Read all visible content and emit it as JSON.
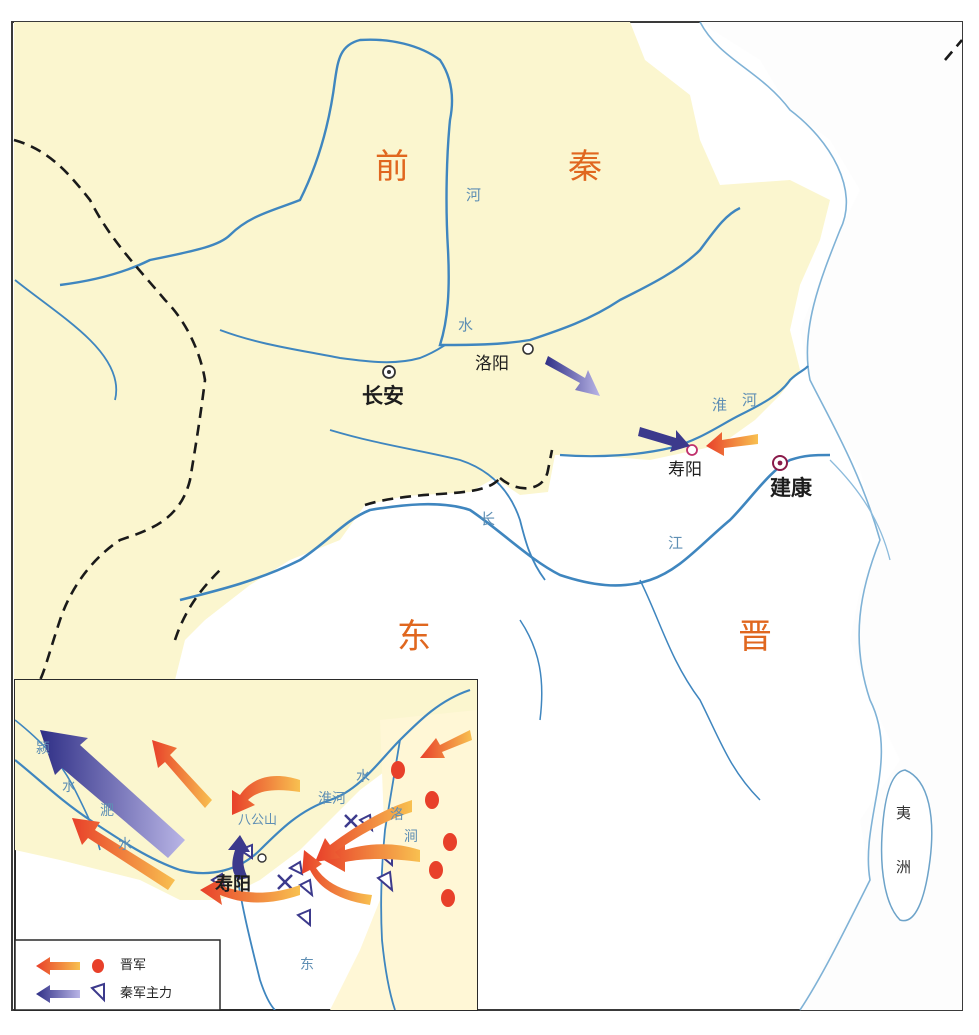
{
  "regions": {
    "qian": "前",
    "qin": "秦",
    "dong": "东",
    "jin": "晋"
  },
  "cities": {
    "changan": "长安",
    "luoyang": "洛阳",
    "shouyang": "寿阳",
    "jiankang": "建康"
  },
  "rivers": {
    "he_upper": "河",
    "shui": "水",
    "huai": "淮",
    "he_east": "河",
    "chang": "长",
    "jiang": "江"
  },
  "island": {
    "line1": "夷",
    "line2": "洲"
  },
  "inset": {
    "city": "寿阳",
    "mountain": "八公山",
    "rivers": {
      "fei": "淝",
      "shui1": "水",
      "huai_he": "淮河",
      "luo": "洛",
      "jian": "涧",
      "dong": "东",
      "ying": "颍",
      "shui2": "水",
      "shui3": "水"
    }
  },
  "legend": {
    "jin_army": "晋军",
    "qin_army": "秦军主力"
  },
  "colors": {
    "land_north": "#fbf6cf",
    "land_south": "#ffffff",
    "river": "#3f86bf",
    "border": "#1a1a1a",
    "region_text": "#e0671f",
    "jin_arrow": "#e8402a",
    "qin_arrow": "#3c3a8c",
    "frame": "#3a3a3a"
  }
}
